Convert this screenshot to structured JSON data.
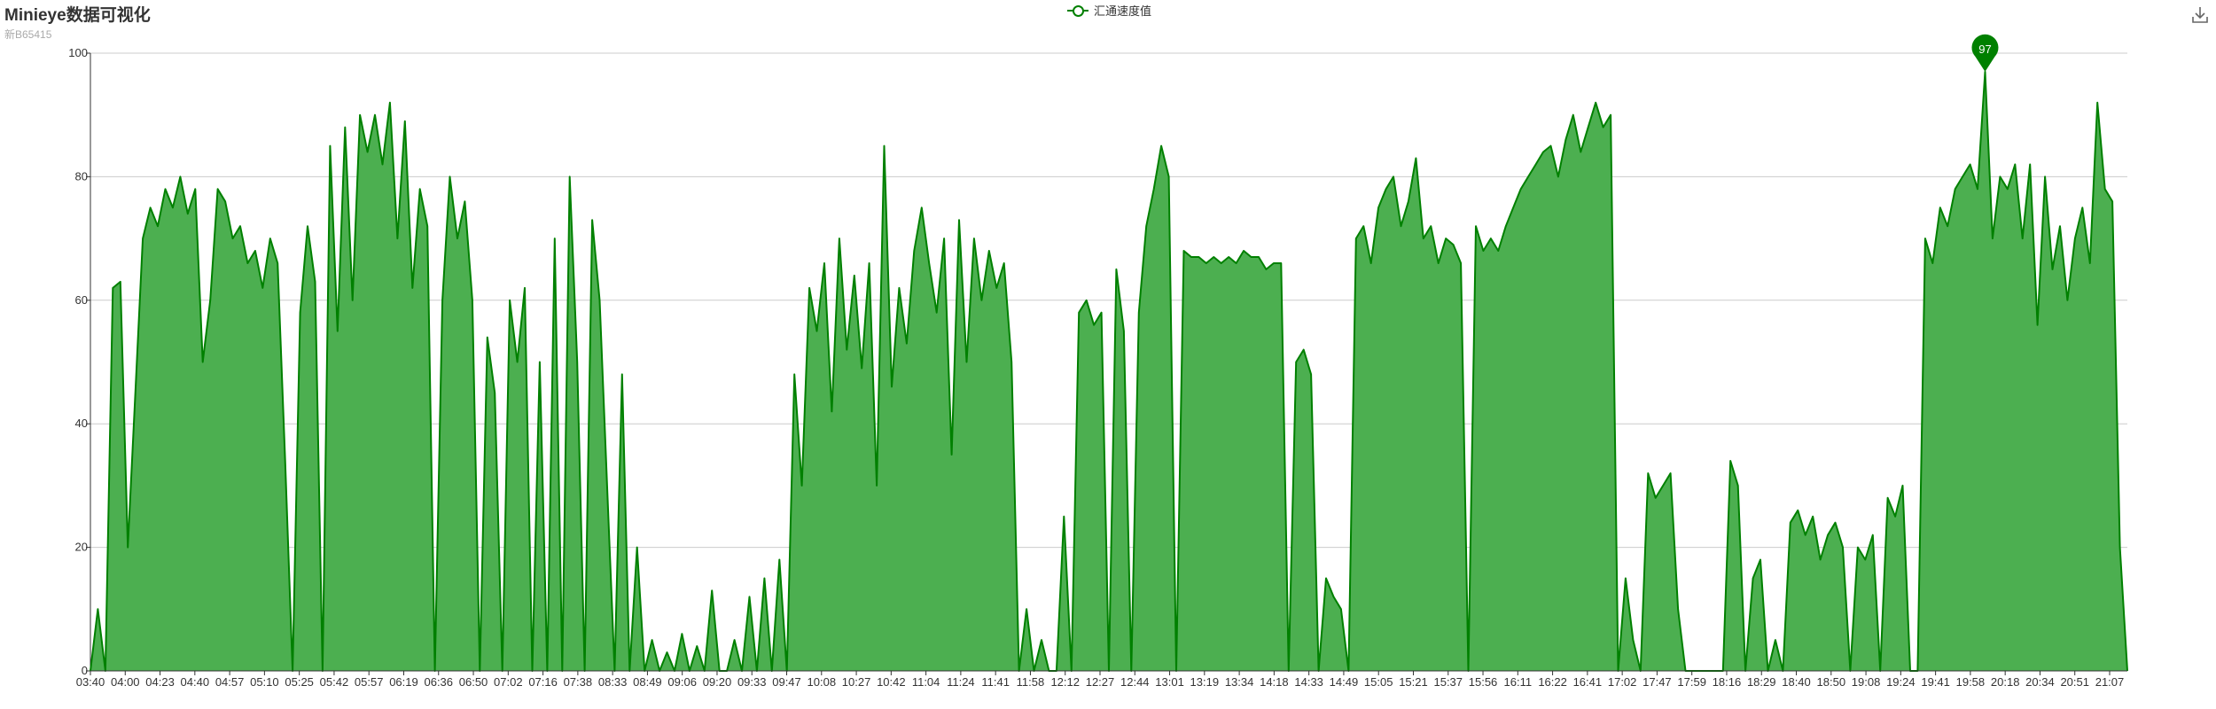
{
  "title": "Minieye数据可视化",
  "subtitle": "新B65415",
  "legend": {
    "label": "汇通速度值"
  },
  "colors": {
    "series": "#008000",
    "fill": "#4caf50",
    "axis": "#333333",
    "grid": "#cccccc"
  },
  "icons": {
    "download": "download-icon"
  },
  "chart_data": {
    "type": "area",
    "title": "Minieye数据可视化",
    "subtitle": "新B65415",
    "xlabel": "",
    "ylabel": "",
    "ylim": [
      0,
      100
    ],
    "yticks": [
      0,
      20,
      40,
      60,
      80,
      100
    ],
    "grid": true,
    "legend_position": "top-center",
    "xtick_labels": [
      "03:40",
      "04:00",
      "04:23",
      "04:40",
      "04:57",
      "05:10",
      "05:25",
      "05:42",
      "05:57",
      "06:19",
      "06:36",
      "06:50",
      "07:02",
      "07:16",
      "07:38",
      "08:33",
      "08:49",
      "09:06",
      "09:20",
      "09:33",
      "09:47",
      "10:08",
      "10:27",
      "10:42",
      "11:04",
      "11:24",
      "11:41",
      "11:58",
      "12:12",
      "12:27",
      "12:44",
      "13:01",
      "13:19",
      "13:34",
      "14:18",
      "14:33",
      "14:49",
      "15:05",
      "15:21",
      "15:37",
      "15:56",
      "16:11",
      "16:22",
      "16:41",
      "17:02",
      "17:47",
      "17:59",
      "18:16",
      "18:29",
      "18:40",
      "18:50",
      "19:08",
      "19:24",
      "19:41",
      "19:58",
      "20:18",
      "20:34",
      "20:51",
      "21:07"
    ],
    "series": [
      {
        "name": "汇通速度值",
        "values": [
          0,
          10,
          0,
          62,
          63,
          20,
          45,
          70,
          75,
          72,
          78,
          75,
          80,
          74,
          78,
          50,
          60,
          78,
          76,
          70,
          72,
          66,
          68,
          62,
          70,
          66,
          34,
          0,
          58,
          72,
          63,
          0,
          85,
          55,
          88,
          60,
          90,
          84,
          90,
          82,
          92,
          70,
          89,
          62,
          78,
          72,
          0,
          60,
          80,
          70,
          76,
          60,
          0,
          54,
          45,
          0,
          60,
          50,
          62,
          0,
          50,
          0,
          70,
          0,
          80,
          50,
          0,
          73,
          60,
          30,
          0,
          48,
          0,
          20,
          0,
          5,
          0,
          3,
          0,
          6,
          0,
          4,
          0,
          13,
          0,
          0,
          5,
          0,
          12,
          0,
          15,
          0,
          18,
          0,
          48,
          30,
          62,
          55,
          66,
          42,
          70,
          52,
          64,
          49,
          66,
          30,
          85,
          46,
          62,
          53,
          68,
          75,
          66,
          58,
          70,
          35,
          73,
          50,
          70,
          60,
          68,
          62,
          66,
          50,
          0,
          10,
          0,
          5,
          0,
          0,
          25,
          0,
          58,
          60,
          56,
          58,
          0,
          65,
          55,
          0,
          58,
          72,
          78,
          85,
          80,
          0,
          68,
          67,
          67,
          66,
          67,
          66,
          67,
          66,
          68,
          67,
          67,
          65,
          66,
          66,
          0,
          50,
          52,
          48,
          0,
          15,
          12,
          10,
          0,
          70,
          72,
          66,
          75,
          78,
          80,
          72,
          76,
          83,
          70,
          72,
          66,
          70,
          69,
          66,
          0,
          72,
          68,
          70,
          68,
          72,
          75,
          78,
          80,
          82,
          84,
          85,
          80,
          86,
          90,
          84,
          88,
          92,
          88,
          90,
          0,
          15,
          5,
          0,
          32,
          28,
          30,
          32,
          10,
          0,
          0,
          0,
          0,
          0,
          0,
          34,
          30,
          0,
          15,
          18,
          0,
          5,
          0,
          24,
          26,
          22,
          25,
          18,
          22,
          24,
          20,
          0,
          20,
          18,
          22,
          0,
          28,
          25,
          30,
          0,
          0,
          70,
          66,
          75,
          72,
          78,
          80,
          82,
          78,
          97,
          70,
          80,
          78,
          82,
          70,
          82,
          56,
          80,
          65,
          72,
          60,
          70,
          75,
          66,
          92,
          78,
          76,
          20,
          0
        ]
      }
    ],
    "markers": [
      {
        "type": "max",
        "value": 97
      }
    ]
  }
}
